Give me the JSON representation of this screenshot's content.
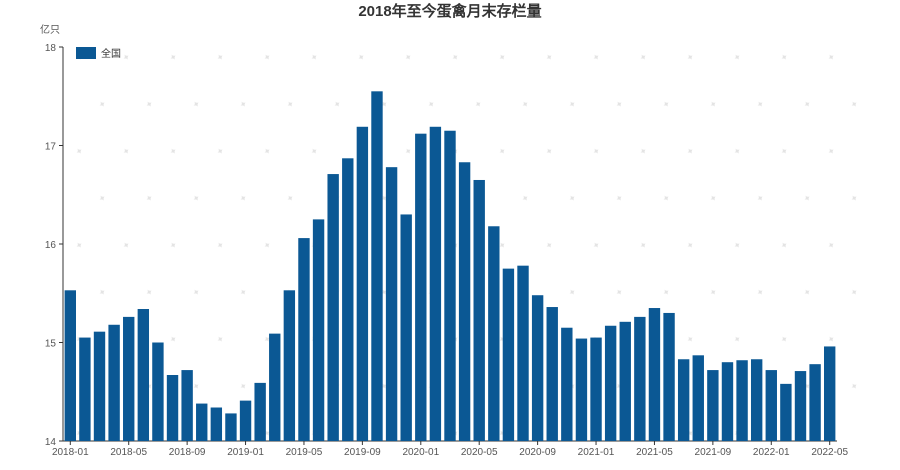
{
  "chart_data": {
    "type": "bar",
    "title": "2018年至今蛋禽月末存栏量",
    "ylabel": "亿只",
    "xlabel": "",
    "ylim": [
      14,
      18
    ],
    "yticks": [
      14,
      15,
      16,
      17,
      18
    ],
    "legend_position": "top-left",
    "grid": false,
    "x_tick_labels": [
      "2018-01",
      "2018-05",
      "2018-09",
      "2019-01",
      "2019-05",
      "2019-09",
      "2020-01",
      "2020-05",
      "2020-09",
      "2021-01",
      "2021-05",
      "2021-09",
      "2022-01",
      "2022-05"
    ],
    "categories": [
      "2018-01",
      "2018-02",
      "2018-03",
      "2018-04",
      "2018-05",
      "2018-06",
      "2018-07",
      "2018-08",
      "2018-09",
      "2018-10",
      "2018-11",
      "2018-12",
      "2019-01",
      "2019-02",
      "2019-03",
      "2019-04",
      "2019-05",
      "2019-06",
      "2019-07",
      "2019-08",
      "2019-09",
      "2019-10",
      "2019-11",
      "2019-12",
      "2020-01",
      "2020-02",
      "2020-03",
      "2020-04",
      "2020-05",
      "2020-06",
      "2020-07",
      "2020-08",
      "2020-09",
      "2020-10",
      "2020-11",
      "2020-12",
      "2021-01",
      "2021-02",
      "2021-03",
      "2021-04",
      "2021-05",
      "2021-06",
      "2021-07",
      "2021-08",
      "2021-09",
      "2021-10",
      "2021-11",
      "2021-12",
      "2022-01",
      "2022-02",
      "2022-03",
      "2022-04",
      "2022-05"
    ],
    "series": [
      {
        "name": "全国",
        "color": "#0b5894",
        "values": [
          15.53,
          15.05,
          15.11,
          15.18,
          15.26,
          15.34,
          15.0,
          14.67,
          14.72,
          14.38,
          14.34,
          14.28,
          14.41,
          14.59,
          15.09,
          15.53,
          16.06,
          16.25,
          16.71,
          16.87,
          17.19,
          17.55,
          16.78,
          16.3,
          17.12,
          17.19,
          17.15,
          16.83,
          16.65,
          16.18,
          15.75,
          15.78,
          15.48,
          15.36,
          15.15,
          15.04,
          15.05,
          15.17,
          15.21,
          15.26,
          15.35,
          15.3,
          14.83,
          14.87,
          14.72,
          14.8,
          14.82,
          14.83,
          14.72,
          14.58,
          14.71,
          14.78,
          14.96
        ]
      }
    ]
  }
}
